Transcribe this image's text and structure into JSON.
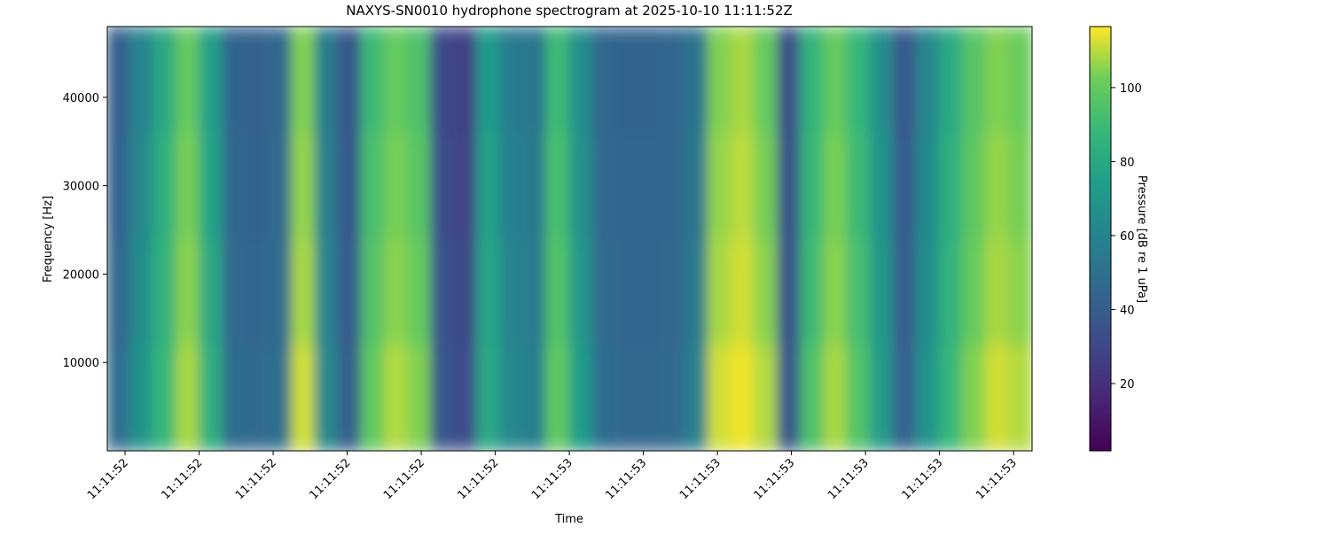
{
  "chart_data": {
    "type": "spectrogram",
    "title": "NAXYS-SN0010 hydrophone spectrogram at 2025-10-10 11:11:52Z",
    "xlabel": "Time",
    "ylabel": "Frequency [Hz]",
    "colorbar_label": "Pressure [dB re 1 uPa]",
    "colormap": "viridis",
    "xlim": [
      -0.24,
      12.25
    ],
    "xticks": [
      {
        "value": 0,
        "label": "11:11:52"
      },
      {
        "value": 1,
        "label": "11:11:52"
      },
      {
        "value": 2,
        "label": "11:11:52"
      },
      {
        "value": 3,
        "label": "11:11:52"
      },
      {
        "value": 4,
        "label": "11:11:52"
      },
      {
        "value": 5,
        "label": "11:11:52"
      },
      {
        "value": 6,
        "label": "11:11:53"
      },
      {
        "value": 7,
        "label": "11:11:53"
      },
      {
        "value": 8,
        "label": "11:11:53"
      },
      {
        "value": 9,
        "label": "11:11:53"
      },
      {
        "value": 10,
        "label": "11:11:53"
      },
      {
        "value": 11,
        "label": "11:11:53"
      },
      {
        "value": 12,
        "label": "11:11:53"
      }
    ],
    "ylim": [
      0,
      48000
    ],
    "yticks": [
      10000,
      20000,
      30000,
      40000
    ],
    "clim": [
      1.8,
      116.5
    ],
    "cticks": [
      20,
      40,
      60,
      80,
      100
    ],
    "z": [
      [
        48,
        68,
        88,
        108,
        83,
        47,
        46,
        49,
        112,
        62,
        40,
        99,
        109,
        104,
        37,
        32,
        80,
        62,
        57,
        99,
        73,
        47,
        45,
        45,
        46,
        58,
        112,
        115,
        109,
        37,
        94,
        108,
        95,
        72,
        42,
        68,
        88,
        104,
        112,
        109
      ],
      [
        45,
        65,
        85,
        105,
        80,
        45,
        44,
        47,
        108,
        60,
        38,
        95,
        105,
        100,
        35,
        30,
        78,
        60,
        55,
        95,
        70,
        46,
        44,
        44,
        45,
        55,
        108,
        112,
        105,
        35,
        90,
        105,
        92,
        70,
        40,
        65,
        85,
        100,
        108,
        105
      ],
      [
        43,
        62,
        83,
        103,
        77,
        44,
        43,
        46,
        106,
        58,
        37,
        93,
        103,
        97,
        33,
        28,
        76,
        58,
        54,
        93,
        68,
        45,
        44,
        44,
        44,
        53,
        106,
        110,
        103,
        34,
        88,
        103,
        90,
        68,
        39,
        63,
        83,
        98,
        106,
        103
      ],
      [
        41,
        60,
        80,
        100,
        74,
        43,
        42,
        45,
        104,
        56,
        36,
        90,
        100,
        94,
        31,
        27,
        73,
        56,
        52,
        90,
        66,
        44,
        43,
        43,
        44,
        51,
        104,
        108,
        100,
        33,
        86,
        100,
        88,
        66,
        38,
        61,
        80,
        96,
        104,
        101
      ]
    ]
  }
}
